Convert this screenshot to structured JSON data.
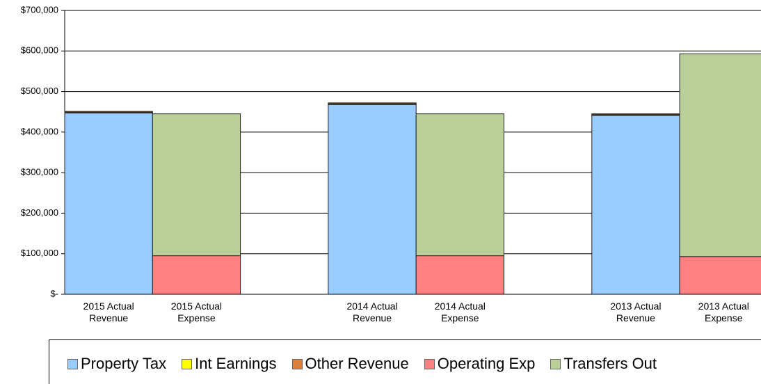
{
  "chart_data": {
    "type": "stacked_bar",
    "categories": [
      "2015 Actual Revenue",
      "2015 Actual Expense",
      null,
      "2014 Actual Revenue",
      "2014 Actual Expense",
      null,
      "2013 Actual Revenue",
      "2013 Actual Expense"
    ],
    "series": [
      {
        "name": "Property Tax",
        "color": "#99ccff",
        "values": [
          447000,
          null,
          null,
          468000,
          null,
          null,
          441000,
          null
        ]
      },
      {
        "name": "Int Earnings",
        "color": "#ffff00",
        "values": [
          2000,
          null,
          null,
          2000,
          null,
          null,
          2000,
          null
        ]
      },
      {
        "name": "Other Revenue",
        "color": "#d9803f",
        "values": [
          2000,
          null,
          null,
          2000,
          null,
          null,
          2000,
          null
        ]
      },
      {
        "name": "Operating Exp",
        "color": "#ff8080",
        "values": [
          null,
          95000,
          null,
          null,
          95000,
          null,
          null,
          93000
        ]
      },
      {
        "name": "Transfers Out",
        "color": "#bbcf99",
        "values": [
          null,
          350000,
          null,
          null,
          350000,
          null,
          null,
          500000
        ]
      }
    ],
    "ylim": [
      0,
      700000
    ],
    "yticks": [
      {
        "value": 0,
        "label": "$-"
      },
      {
        "value": 100000,
        "label": "$100,000"
      },
      {
        "value": 200000,
        "label": "$200,000"
      },
      {
        "value": 300000,
        "label": "$300,000"
      },
      {
        "value": 400000,
        "label": "$400,000"
      },
      {
        "value": 500000,
        "label": "$500,000"
      },
      {
        "value": 600000,
        "label": "$600,000"
      },
      {
        "value": 700000,
        "label": "$700,000"
      }
    ],
    "grid": true,
    "legend": "bottom"
  }
}
